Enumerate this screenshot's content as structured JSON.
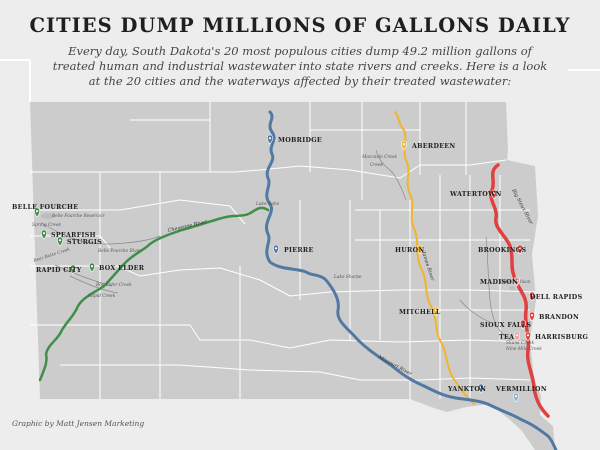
{
  "title": "CITIES DUMP MILLIONS OF GALLONS DAILY",
  "subtitle": "Every day, South Dakota's 20 most populous cities dump 49.2 million gallons of treated human and industrial wastewater into state rivers and creeks. Here is a look at the 20 cities and the waterways affected by their treated wastewater:",
  "credit": "Graphic by Matt Jensen Marketing",
  "colors": {
    "map_fill": "#cccccc",
    "county_lines": "#ffffff",
    "missouri": "#5279a3",
    "cheyenne": "#3f8f48",
    "james": "#f0b52c",
    "big_sioux": "#e04040",
    "minor_stream": "#8a8a8a"
  },
  "cities": [
    {
      "name": "MOBRIDGE",
      "pin": "blue"
    },
    {
      "name": "ABERDEEN",
      "pin": "yellow"
    },
    {
      "name": "WATERTOWN",
      "pin": "red"
    },
    {
      "name": "BELLE FOURCHE",
      "pin": "green"
    },
    {
      "name": "SPEARFISH",
      "pin": "green"
    },
    {
      "name": "STURGIS",
      "pin": "green"
    },
    {
      "name": "PIERRE",
      "pin": "blue"
    },
    {
      "name": "HURON",
      "pin": "yellow"
    },
    {
      "name": "BROOKINGS",
      "pin": "red"
    },
    {
      "name": "RAPID CITY",
      "pin": "green"
    },
    {
      "name": "BOX ELDER",
      "pin": "green"
    },
    {
      "name": "MADISON",
      "pin": "red"
    },
    {
      "name": "DELL RAPIDS",
      "pin": "red"
    },
    {
      "name": "MITCHELL",
      "pin": "yellow"
    },
    {
      "name": "BRANDON",
      "pin": "red"
    },
    {
      "name": "SIOUX FALLS",
      "pin": "red"
    },
    {
      "name": "TEA",
      "pin": "red"
    },
    {
      "name": "HARRISBURG",
      "pin": "red"
    },
    {
      "name": "YANKTON",
      "pin": "blue"
    },
    {
      "name": "VERMILLION",
      "pin": "blue"
    }
  ],
  "waterways": {
    "cheyenne_river": "Cheyenne River",
    "missouri_river": "Missouri River",
    "james_river": "James River",
    "big_sioux_river": "Big Sioux River",
    "mocassin_creek": "Moccasin Creek",
    "lake_oahe": "Lake Oahe",
    "lake_sharpe": "Lake Sharpe",
    "lake_madison": "Lake Madison",
    "belle_fourche_reservoir": "Belle Fourche Reservoir",
    "spring_creek": "Spring Creek",
    "bear_butte_creek": "Bear Butte Creek",
    "belle_fourche_river": "Belle Fourche River",
    "rapid_creek": "Rapid Creek",
    "box_elder_creek": "Box Elder Creek",
    "skunk_creek": "Skunk Creek",
    "nine_mile_creek": "Nine Mile Creek"
  }
}
